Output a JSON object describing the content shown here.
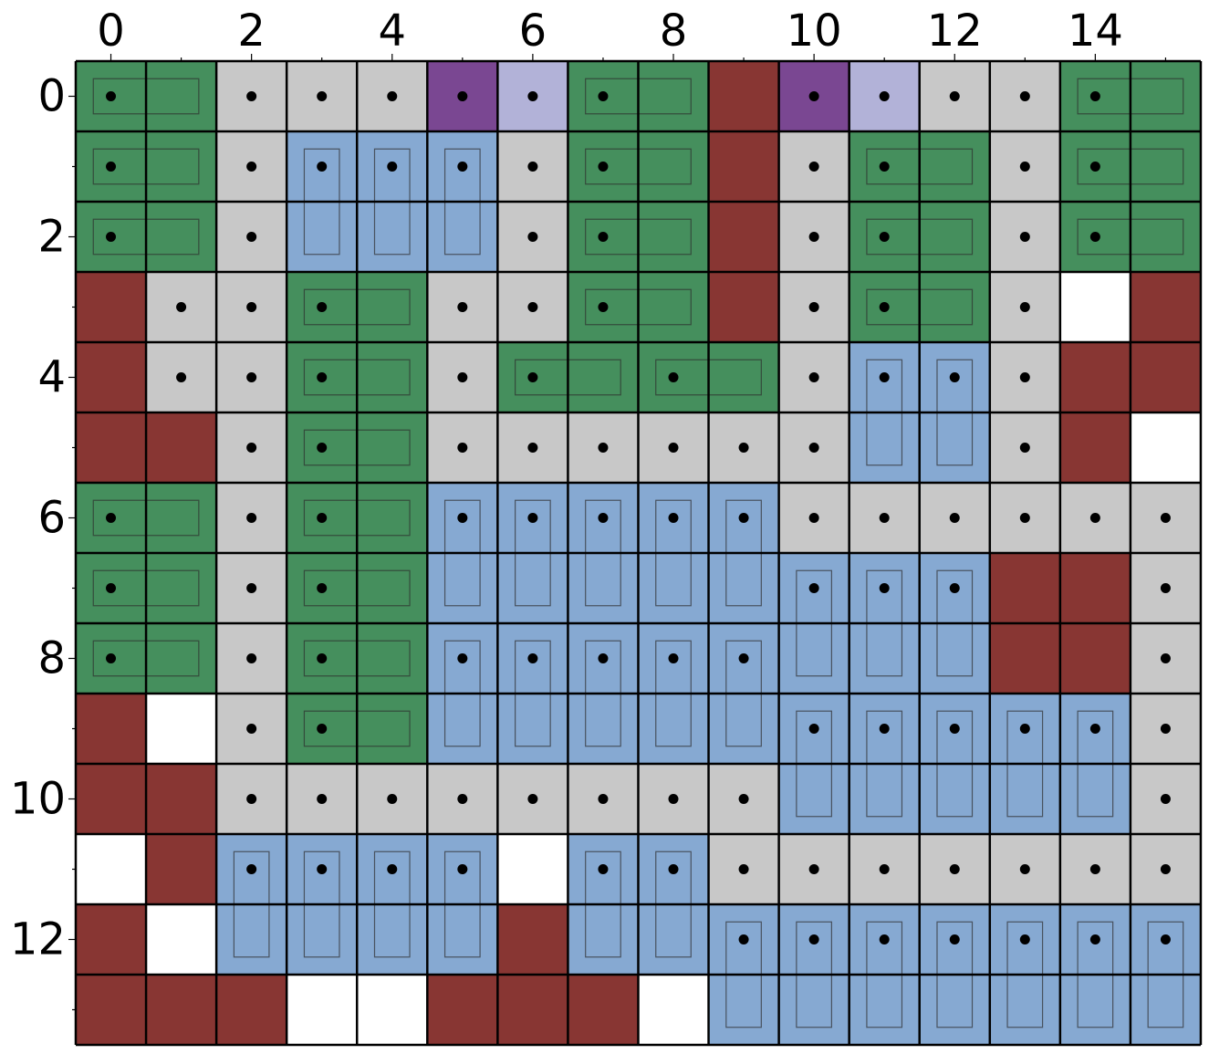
{
  "chart_data": {
    "type": "heatmap",
    "x_tick_labels": [
      "0",
      "2",
      "4",
      "6",
      "8",
      "10",
      "12",
      "14"
    ],
    "y_tick_labels": [
      "0",
      "2",
      "4",
      "6",
      "8",
      "10",
      "12"
    ],
    "x_tick_values": [
      0,
      2,
      4,
      6,
      8,
      10,
      12,
      14
    ],
    "y_tick_values": [
      0,
      2,
      4,
      6,
      8,
      10,
      12
    ],
    "columns": 16,
    "rows": 14,
    "xlim": [
      -0.5,
      15.5
    ],
    "ylim": [
      13.5,
      -0.5
    ],
    "grid": true,
    "legend": "none",
    "colors": {
      "G": "#458f5d",
      "B": "#86a9d2",
      "R": "#883633",
      "L": "#c8c8c8",
      "P": "#7a4792",
      "V": "#b2b2d8",
      "W": "#ffffff"
    },
    "cell_grid": [
      "GGLLLPVGGRPVLLGG",
      "GGLBBBLGGRLGGLGG",
      "GGLBBBLGGRLGGLGG",
      "RLLGGLLGGRLGGLWR",
      "RLLGGLGGGGLBBLRR",
      "RRLGGLLLLLLBBLRW",
      "GGLGGBBBBBLLLLLL",
      "GGLGGBBBBBBBBRRL",
      "GGLGGBBBBBBBBRRL",
      "RWLGGBBBBBBBBBBL",
      "RRLLLLLLLLBBBBBL",
      "WRBBBBWBBLLLLLLL",
      "RWBBBBRBBBBBBBBB",
      "RRRWWRRRWBBBBBBB"
    ],
    "dots": [
      [
        0,
        0
      ],
      [
        2,
        0
      ],
      [
        3,
        0
      ],
      [
        4,
        0
      ],
      [
        5,
        0
      ],
      [
        6,
        0
      ],
      [
        7,
        0
      ],
      [
        10,
        0
      ],
      [
        11,
        0
      ],
      [
        12,
        0
      ],
      [
        13,
        0
      ],
      [
        14,
        0
      ],
      [
        0,
        1
      ],
      [
        2,
        1
      ],
      [
        3,
        1
      ],
      [
        4,
        1
      ],
      [
        5,
        1
      ],
      [
        6,
        1
      ],
      [
        7,
        1
      ],
      [
        10,
        1
      ],
      [
        11,
        1
      ],
      [
        13,
        1
      ],
      [
        14,
        1
      ],
      [
        0,
        2
      ],
      [
        2,
        2
      ],
      [
        6,
        2
      ],
      [
        7,
        2
      ],
      [
        10,
        2
      ],
      [
        11,
        2
      ],
      [
        13,
        2
      ],
      [
        14,
        2
      ],
      [
        1,
        3
      ],
      [
        2,
        3
      ],
      [
        3,
        3
      ],
      [
        5,
        3
      ],
      [
        6,
        3
      ],
      [
        7,
        3
      ],
      [
        10,
        3
      ],
      [
        11,
        3
      ],
      [
        13,
        3
      ],
      [
        1,
        4
      ],
      [
        2,
        4
      ],
      [
        3,
        4
      ],
      [
        5,
        4
      ],
      [
        6,
        4
      ],
      [
        8,
        4
      ],
      [
        10,
        4
      ],
      [
        11,
        4
      ],
      [
        12,
        4
      ],
      [
        13,
        4
      ],
      [
        2,
        5
      ],
      [
        3,
        5
      ],
      [
        5,
        5
      ],
      [
        6,
        5
      ],
      [
        7,
        5
      ],
      [
        8,
        5
      ],
      [
        9,
        5
      ],
      [
        10,
        5
      ],
      [
        13,
        5
      ],
      [
        0,
        6
      ],
      [
        2,
        6
      ],
      [
        3,
        6
      ],
      [
        5,
        6
      ],
      [
        6,
        6
      ],
      [
        7,
        6
      ],
      [
        8,
        6
      ],
      [
        9,
        6
      ],
      [
        10,
        6
      ],
      [
        11,
        6
      ],
      [
        12,
        6
      ],
      [
        13,
        6
      ],
      [
        14,
        6
      ],
      [
        15,
        6
      ],
      [
        0,
        7
      ],
      [
        2,
        7
      ],
      [
        3,
        7
      ],
      [
        10,
        7
      ],
      [
        11,
        7
      ],
      [
        12,
        7
      ],
      [
        15,
        7
      ],
      [
        0,
        8
      ],
      [
        2,
        8
      ],
      [
        3,
        8
      ],
      [
        5,
        8
      ],
      [
        6,
        8
      ],
      [
        7,
        8
      ],
      [
        8,
        8
      ],
      [
        9,
        8
      ],
      [
        15,
        8
      ],
      [
        2,
        9
      ],
      [
        3,
        9
      ],
      [
        10,
        9
      ],
      [
        11,
        9
      ],
      [
        12,
        9
      ],
      [
        13,
        9
      ],
      [
        14,
        9
      ],
      [
        15,
        9
      ],
      [
        2,
        10
      ],
      [
        3,
        10
      ],
      [
        4,
        10
      ],
      [
        5,
        10
      ],
      [
        6,
        10
      ],
      [
        7,
        10
      ],
      [
        8,
        10
      ],
      [
        9,
        10
      ],
      [
        15,
        10
      ],
      [
        2,
        11
      ],
      [
        3,
        11
      ],
      [
        4,
        11
      ],
      [
        5,
        11
      ],
      [
        7,
        11
      ],
      [
        8,
        11
      ],
      [
        9,
        11
      ],
      [
        10,
        11
      ],
      [
        11,
        11
      ],
      [
        12,
        11
      ],
      [
        13,
        11
      ],
      [
        14,
        11
      ],
      [
        15,
        11
      ],
      [
        9,
        12
      ],
      [
        10,
        12
      ],
      [
        11,
        12
      ],
      [
        12,
        12
      ],
      [
        13,
        12
      ],
      [
        14,
        12
      ],
      [
        15,
        12
      ]
    ],
    "horizontal_boxes": [
      [
        0,
        0
      ],
      [
        7,
        0
      ],
      [
        14,
        0
      ],
      [
        0,
        1
      ],
      [
        7,
        1
      ],
      [
        11,
        1
      ],
      [
        14,
        1
      ],
      [
        0,
        2
      ],
      [
        7,
        2
      ],
      [
        11,
        2
      ],
      [
        14,
        2
      ],
      [
        3,
        3
      ],
      [
        7,
        3
      ],
      [
        11,
        3
      ],
      [
        3,
        4
      ],
      [
        6,
        4
      ],
      [
        8,
        4
      ],
      [
        3,
        5
      ],
      [
        0,
        6
      ],
      [
        3,
        6
      ],
      [
        0,
        7
      ],
      [
        3,
        7
      ],
      [
        0,
        8
      ],
      [
        3,
        8
      ],
      [
        3,
        9
      ]
    ],
    "vertical_boxes": [
      [
        3,
        1
      ],
      [
        4,
        1
      ],
      [
        5,
        1
      ],
      [
        11,
        4
      ],
      [
        12,
        4
      ],
      [
        5,
        6
      ],
      [
        6,
        6
      ],
      [
        7,
        6
      ],
      [
        8,
        6
      ],
      [
        9,
        6
      ],
      [
        10,
        7
      ],
      [
        11,
        7
      ],
      [
        12,
        7
      ],
      [
        5,
        8
      ],
      [
        6,
        8
      ],
      [
        7,
        8
      ],
      [
        8,
        8
      ],
      [
        9,
        8
      ],
      [
        10,
        9
      ],
      [
        11,
        9
      ],
      [
        12,
        9
      ],
      [
        13,
        9
      ],
      [
        14,
        9
      ],
      [
        2,
        11
      ],
      [
        3,
        11
      ],
      [
        4,
        11
      ],
      [
        5,
        11
      ],
      [
        7,
        11
      ],
      [
        8,
        11
      ],
      [
        9,
        12
      ],
      [
        10,
        12
      ],
      [
        11,
        12
      ],
      [
        12,
        12
      ],
      [
        13,
        12
      ],
      [
        14,
        12
      ],
      [
        15,
        12
      ]
    ]
  }
}
